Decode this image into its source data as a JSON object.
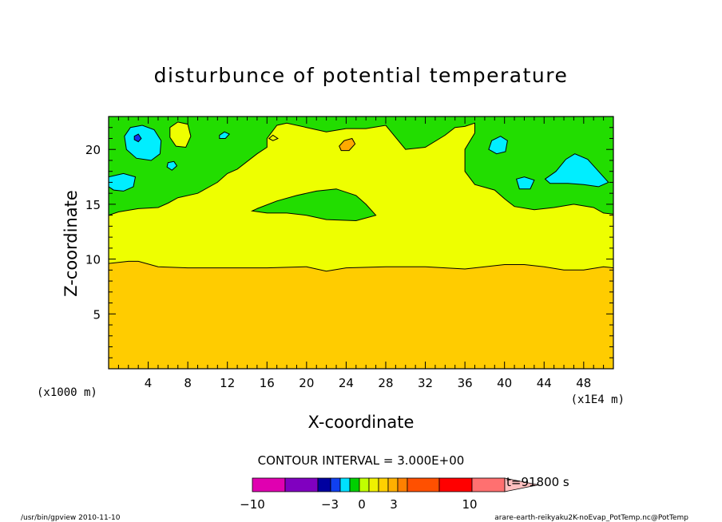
{
  "chart_data": {
    "type": "contour",
    "title": "disturbunce of potential temperature",
    "xlabel": "X-coordinate",
    "ylabel": "Z-coordinate",
    "x_scale_note": "(x1E4 m)",
    "y_scale_note": "(x1000 m)",
    "xlim": [
      0,
      51
    ],
    "ylim": [
      0,
      23
    ],
    "x_ticks": [
      "4",
      "8",
      "12",
      "16",
      "20",
      "24",
      "28",
      "32",
      "36",
      "40",
      "44",
      "48"
    ],
    "y_ticks": [
      "5",
      "10",
      "15",
      "20"
    ],
    "contour_interval_text": "CONTOUR INTERVAL = 3.000E+00",
    "time_label": "t=91800 s",
    "colorbar": {
      "tick_labels": [
        "−10",
        "−3",
        "0",
        "3",
        "10"
      ],
      "colors": [
        "#e000b0",
        "#8000c0",
        "#0000a0",
        "#1040f0",
        "#00e0ff",
        "#00d000",
        "#c0ff00",
        "#f0f000",
        "#ffd000",
        "#ffb000",
        "#ff8000",
        "#ff5000",
        "#ff0000",
        "#ff7070",
        "#ffc0c0"
      ]
    },
    "fill_colors": {
      "orange": "#ffcc00",
      "yellow": "#eeff00",
      "green": "#22dd00",
      "cyan": "#00eeff",
      "blue": "#1133ee",
      "dark_orange": "#ffaa00"
    },
    "regions": {
      "orange_top": [
        [
          0,
          9.6
        ],
        [
          2,
          9.8
        ],
        [
          3,
          9.8
        ],
        [
          5,
          9.3
        ],
        [
          8,
          9.2
        ],
        [
          12,
          9.2
        ],
        [
          16,
          9.2
        ],
        [
          20,
          9.3
        ],
        [
          22,
          8.9
        ],
        [
          24,
          9.2
        ],
        [
          28,
          9.3
        ],
        [
          32,
          9.3
        ],
        [
          36,
          9.1
        ],
        [
          38,
          9.3
        ],
        [
          40,
          9.5
        ],
        [
          42,
          9.5
        ],
        [
          44,
          9.3
        ],
        [
          46,
          9.0
        ],
        [
          48,
          9.0
        ],
        [
          50,
          9.3
        ],
        [
          51,
          9.2
        ]
      ],
      "green_bottom": [
        [
          0,
          14.0
        ],
        [
          1,
          14.3
        ],
        [
          3,
          14.6
        ],
        [
          5,
          14.7
        ],
        [
          6,
          15.1
        ],
        [
          7,
          15.6
        ],
        [
          9,
          16.0
        ],
        [
          11,
          17.0
        ],
        [
          12,
          17.8
        ],
        [
          13,
          18.2
        ],
        [
          14,
          18.9
        ],
        [
          15,
          19.6
        ],
        [
          16,
          20.2
        ],
        [
          16,
          21.0
        ],
        [
          17,
          22.2
        ],
        [
          18,
          22.4
        ],
        [
          20,
          22.0
        ],
        [
          22,
          21.6
        ],
        [
          24,
          21.9
        ],
        [
          26,
          21.9
        ],
        [
          28,
          22.2
        ],
        [
          30,
          20.0
        ],
        [
          32,
          20.2
        ],
        [
          34,
          21.3
        ],
        [
          35,
          22.0
        ],
        [
          36,
          22.1
        ],
        [
          37,
          22.4
        ],
        [
          37,
          21.5
        ],
        [
          36,
          20.0
        ],
        [
          36,
          18.0
        ],
        [
          37,
          16.8
        ],
        [
          39,
          16.3
        ],
        [
          40,
          15.5
        ],
        [
          41,
          14.8
        ],
        [
          43,
          14.5
        ],
        [
          45,
          14.7
        ],
        [
          47,
          15.0
        ],
        [
          49,
          14.7
        ],
        [
          50,
          14.2
        ],
        [
          51,
          14.1
        ]
      ],
      "green_islands": [
        [
          [
            15,
            14.6
          ],
          [
            17,
            15.3
          ],
          [
            19,
            15.8
          ],
          [
            21,
            16.2
          ],
          [
            23,
            16.4
          ],
          [
            25,
            15.8
          ],
          [
            26,
            15.0
          ],
          [
            27,
            14.0
          ],
          [
            25,
            13.5
          ],
          [
            22,
            13.6
          ],
          [
            20,
            14.0
          ],
          [
            18,
            14.2
          ],
          [
            16,
            14.2
          ],
          [
            14.5,
            14.4
          ]
        ]
      ],
      "yellow_islands": [
        [
          [
            6.2,
            22.0
          ],
          [
            7,
            22.5
          ],
          [
            8,
            22.3
          ],
          [
            8.3,
            21.2
          ],
          [
            7.8,
            20.2
          ],
          [
            6.8,
            20.3
          ],
          [
            6.2,
            21.1
          ]
        ]
      ],
      "cyan": [
        [
          [
            1.6,
            21.2
          ],
          [
            2.2,
            22.0
          ],
          [
            3.4,
            22.2
          ],
          [
            4.6,
            21.8
          ],
          [
            5.3,
            20.8
          ],
          [
            5.2,
            19.6
          ],
          [
            4.3,
            19.0
          ],
          [
            2.8,
            19.2
          ],
          [
            1.8,
            20.0
          ]
        ],
        [
          [
            0,
            17.5
          ],
          [
            1.5,
            17.8
          ],
          [
            2.7,
            17.5
          ],
          [
            2.5,
            16.6
          ],
          [
            1.5,
            16.2
          ],
          [
            0.5,
            16.3
          ],
          [
            0,
            16.6
          ]
        ],
        [
          [
            6.0,
            18.8
          ],
          [
            6.6,
            18.9
          ],
          [
            6.9,
            18.5
          ],
          [
            6.4,
            18.1
          ],
          [
            5.9,
            18.4
          ]
        ],
        [
          [
            11.2,
            21.3
          ],
          [
            11.7,
            21.6
          ],
          [
            12.2,
            21.4
          ],
          [
            11.8,
            21.0
          ],
          [
            11.2,
            21.0
          ]
        ],
        [
          [
            38.7,
            20.8
          ],
          [
            39.6,
            21.2
          ],
          [
            40.3,
            20.8
          ],
          [
            40.1,
            19.8
          ],
          [
            39.2,
            19.6
          ],
          [
            38.4,
            20.0
          ]
        ],
        [
          [
            41.2,
            17.3
          ],
          [
            42.0,
            17.5
          ],
          [
            43.0,
            17.2
          ],
          [
            42.6,
            16.4
          ],
          [
            41.5,
            16.4
          ]
        ],
        [
          [
            44.1,
            17.3
          ],
          [
            45.2,
            18.0
          ],
          [
            46.2,
            19.1
          ],
          [
            47.1,
            19.6
          ],
          [
            48.4,
            19.1
          ],
          [
            49.4,
            18.1
          ],
          [
            50.5,
            17.0
          ],
          [
            49.5,
            16.6
          ],
          [
            48.0,
            16.8
          ],
          [
            46.4,
            16.9
          ],
          [
            44.6,
            16.9
          ]
        ]
      ],
      "blue": [
        [
          [
            2.6,
            21.2
          ],
          [
            3.0,
            21.4
          ],
          [
            3.3,
            21.0
          ],
          [
            3.0,
            20.7
          ],
          [
            2.6,
            20.9
          ]
        ]
      ],
      "dark_orange": [
        [
          [
            23.3,
            20.3
          ],
          [
            23.8,
            20.8
          ],
          [
            24.6,
            21.0
          ],
          [
            24.9,
            20.5
          ],
          [
            24.3,
            19.9
          ],
          [
            23.5,
            19.9
          ]
        ]
      ],
      "small_contours": [
        [
          [
            16.2,
            21.0
          ],
          [
            16.6,
            21.3
          ],
          [
            17.1,
            21.0
          ],
          [
            16.6,
            20.8
          ]
        ]
      ]
    }
  },
  "footer": {
    "left": "/usr/bin/gpview   2010-11-10",
    "right": "arare-earth-reikyaku2K-noEvap_PotTemp.nc@PotTemp"
  }
}
